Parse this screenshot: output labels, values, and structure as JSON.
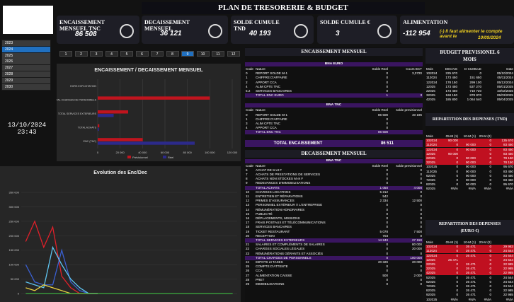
{
  "title": "PLAN DE TRESORERIE & BUDGET",
  "kpis": [
    {
      "label": "ENCAISSEMENT MENSUEL TNC",
      "value": "86 508"
    },
    {
      "label": "DECAISSEMENT MENSUEL",
      "value": "36 121"
    },
    {
      "label": "SOLDE CUMULE TND",
      "value": "40 193"
    },
    {
      "label": "SOLDE CUMULE €",
      "value": "3"
    },
    {
      "label": "ALIMENTATION",
      "value": "-112 954",
      "note": "(-) Il faut alimenter le compte avant le",
      "note_date": "10/09/2024"
    }
  ],
  "years": [
    "2023",
    "2024",
    "2025",
    "2026",
    "2027",
    "2028",
    "2029",
    "2030"
  ],
  "selected_year": "2024",
  "months": [
    "1",
    "2",
    "3",
    "4",
    "5",
    "6",
    "7",
    "8",
    "9",
    "10",
    "11",
    "12"
  ],
  "selected_month": "9",
  "date": "13/10/2024",
  "time": "23:43",
  "charts": [
    {
      "type": "hbar",
      "title": "ENCAISSEMENT / DECAISSEMENT MENSUEL",
      "categories": [
        "HORS EXPLOITATION",
        "TOTAL CHARGES DE PERSONNELS",
        "TOTAL SERVICES EXTERIEURS",
        "TOTAL ACHATS",
        "ENC (TNC)"
      ],
      "series": [
        {
          "name": "Prévisionnel",
          "color": "#c0141e",
          "values": [
            0,
            100000,
            27150,
            1450,
            40196
          ]
        },
        {
          "name": "Réel",
          "color": "#2c2a8a",
          "values": [
            0,
            0,
            14243,
            1050,
            86508
          ]
        }
      ],
      "xlim": [
        0,
        120000
      ],
      "xticks": [
        0,
        {
          "value": 20000,
          "label": "20 000"
        },
        {
          "value": 40000,
          "label": "40 000"
        },
        {
          "value": 60000,
          "label": "60 000"
        },
        {
          "value": 80000,
          "label": "80 000"
        },
        {
          "value": 100000,
          "label": "100 000"
        },
        {
          "value": 120000,
          "label": "120 000"
        }
      ]
    },
    {
      "type": "line",
      "title": "Evolution des Enc/Dec",
      "categories": [
        null,
        null,
        null,
        null,
        null,
        null,
        null,
        null,
        null,
        null,
        null,
        null,
        null,
        null,
        null,
        null,
        null,
        null,
        null,
        null,
        null,
        null,
        null,
        null
      ],
      "series": [
        {
          "color": "#e0202a",
          "values": [
            180000,
            250000,
            160000,
            230000,
            60000,
            20000,
            0,
            0,
            0,
            null,
            null,
            null,
            null,
            null,
            null,
            null,
            null,
            null,
            null,
            null,
            null,
            null,
            null,
            null
          ]
        },
        {
          "color": "#3a5fd0",
          "values": [
            100000,
            40000,
            30000,
            30000,
            150000,
            40000,
            10000,
            0,
            0,
            null,
            null,
            null,
            null,
            null,
            null,
            null,
            null,
            null,
            null,
            null,
            null,
            null,
            null,
            null
          ]
        },
        {
          "color": "#5fc4f0",
          "values": [
            40000,
            30000,
            20000,
            160000,
            100000,
            50000,
            20000,
            0,
            0,
            null,
            null,
            null,
            null,
            null,
            null,
            null,
            null,
            null,
            null,
            null,
            null,
            null,
            null,
            null
          ]
        },
        {
          "color": "#e8d040",
          "values": [
            20000,
            10000,
            30000,
            20000,
            10000,
            0,
            0,
            0,
            0,
            null,
            null,
            null,
            null,
            null,
            null,
            null,
            null,
            null,
            null,
            null,
            null,
            null,
            null,
            null
          ]
        },
        {
          "color": "#3cb040",
          "values": [
            0,
            0,
            0,
            0,
            0,
            0,
            0,
            0,
            0,
            0,
            0,
            0,
            0,
            0,
            0,
            0,
            0,
            0,
            0,
            0,
            0,
            0,
            0,
            0
          ]
        }
      ],
      "ylim": [
        0,
        350000
      ],
      "yticks": [
        0,
        {
          "value": 50000,
          "label": "50 000"
        },
        {
          "value": 100000,
          "label": "100 000"
        },
        {
          "value": 150000,
          "label": "150 000"
        },
        {
          "value": 200000,
          "label": "200 000"
        },
        {
          "value": 250000,
          "label": "250 000"
        },
        {
          "value": 300000,
          "label": "300 000"
        },
        {
          "value": 350000,
          "label": "350 000"
        }
      ]
    }
  ],
  "enc": {
    "title": "ENCAISSEMENT MENSUEL",
    "tables": [
      {
        "subtitle": "BNA EURO",
        "columns": [
          "Code",
          "Nature",
          "Solde Reel",
          "Cours BCT"
        ],
        "rows": [
          [
            "0",
            "REPORT SOLDE M-1",
            "0",
            "3,3720"
          ],
          [
            "1",
            "CHIFFRE D'AFFAIRE",
            "0",
            null
          ],
          [
            "2",
            "APPORT CCA",
            "0",
            null
          ],
          [
            "4",
            "ALIM CPTE TNC",
            "0",
            null
          ],
          [
            "5.2",
            "SERVICES BANCAIRES",
            "0",
            null
          ],
          [
            null,
            "TOTAL ENC EURO",
            "1",
            "3"
          ]
        ]
      },
      {
        "subtitle": "BNA TNC",
        "columns": [
          "Code",
          "Nature",
          "Solde Reel",
          "solde previsionnel"
        ],
        "rows": [
          [
            "0",
            "REPORT SOLDE M-1",
            "86 508",
            "40 196"
          ],
          [
            "1",
            "CHIFFRE D'AFFAIRE",
            "0",
            null
          ],
          [
            "3",
            "ALIM CPTE TNC",
            "0",
            null
          ],
          [
            "4",
            "APPORT CCA",
            "0",
            null
          ],
          [
            null,
            "TOTAL ENC TNC",
            "86 508",
            null
          ]
        ]
      }
    ],
    "total_label": "TOTAL ENCAISSEMENT",
    "total_value": "86 511"
  },
  "dec": {
    "title": "DECAISSEMENT MENSUEL",
    "tables": [
      {
        "subtitle": "BNA TNC",
        "columns": [
          "Code",
          "Nature",
          "Solde Reel",
          "solde previsionnel"
        ],
        "rows": [
          [
            "6",
            "ACHAT DE M et F",
            "0",
            "0"
          ],
          [
            "7",
            "ACHATS DE PRESTATIONS DE SERVICES",
            "0",
            "0"
          ],
          [
            "8",
            "ACHATS NON STOCKES M et F",
            "0",
            "0"
          ],
          [
            "9",
            "REDEVANCES D'IMMOBILISATIONS",
            "0",
            "0"
          ],
          [
            null,
            "TOTAL ACHATS",
            "1 050",
            "4 000"
          ],
          [
            "10",
            "CHARGES LOCATIVES",
            "5 212",
            "0"
          ],
          [
            "11",
            "ENTRETIEN ET RÉPARATIONS",
            "542",
            "0"
          ],
          [
            "12",
            "PRIMES D'ASSURANCES",
            "2 334",
            "12 500"
          ],
          [
            "13",
            "PERSONNEL EXTÉRIEUR À L'ENTREPRISE",
            "0",
            "0"
          ],
          [
            "14",
            "RÉMUNÉRATION HONORAIRES",
            "0",
            "0"
          ],
          [
            "15",
            "PUBLICITÉ",
            "0",
            "0"
          ],
          [
            "16",
            "DÉPLACEMENTS, MISSIONS",
            "0",
            "0"
          ],
          [
            "17",
            "FRAIS POSTAUX ET TÉLÉCOMMUNICATIONS",
            "0",
            "0"
          ],
          [
            "18",
            "SERVICES BANCAIRES",
            "0",
            "0"
          ],
          [
            "19",
            "TICKET RESTAURANT",
            "5 078",
            "7 500"
          ],
          [
            "20",
            "RECEPTION",
            "703",
            "0"
          ],
          [
            null,
            "TOTAL SERVICES EXTERIEURS",
            "14 243",
            "27 150"
          ],
          [
            "21",
            "SALAIRES ET COMPLÉMENTS DE SALAIRES",
            "0",
            "80 000"
          ],
          [
            "22",
            "CHARGES SOCIALES LÉGALES",
            "0",
            "20 000"
          ],
          [
            "23",
            "RÉMUNÉRATIONS GÉRANTS ET ASSOCIÉS",
            "0",
            "0"
          ],
          [
            null,
            "TOTAL CHARGES DE PERSONNELS",
            "0",
            "100 000"
          ],
          [
            "24",
            "IMPOTS et TAXES",
            "20 329",
            "20 000"
          ],
          [
            "25",
            "COMPTE D'ATTENTE",
            "0",
            "0"
          ],
          [
            "26",
            "CCA",
            "0",
            "0"
          ],
          [
            "27",
            "ALIMENTATION CAISSE",
            "500",
            "2 000"
          ],
          [
            "28",
            "PRET",
            "0",
            "0"
          ],
          [
            "29",
            "IMMOBILISATIONS",
            "0",
            "0"
          ]
        ]
      }
    ]
  },
  "budget": {
    "title": "BUDGET PREVISIONEL 6 MOIS",
    "columns": [
      "Mois",
      "DECAIS",
      "D CUMULE",
      "Date"
    ],
    "rows": [
      [
        "102024",
        "225 670",
        "0",
        "05/10/2024"
      ],
      [
        "112024",
        "173 450",
        "151 650",
        "05/11/2024"
      ],
      [
        "122024",
        "178 150",
        "299 100",
        "05/12/2024"
      ],
      [
        "12025",
        "173 450",
        "537 270",
        "05/01/2025"
      ],
      [
        "22025",
        "173 450",
        "710 720",
        "10/02/2025"
      ],
      [
        "32025",
        "168 150",
        "878 870",
        "05/03/2025"
      ],
      [
        "42025",
        "185 800",
        "1 064 540",
        "05/04/2025"
      ]
    ]
  },
  "rep_tnd": {
    "title": "REPARTITION DES DEPENSES  (TND)",
    "columns": [
      "Mois",
      "05-M (1)",
      "10-M (1)",
      "20-M (2)",
      null
    ],
    "highlighted_rows": 6,
    "rows": [
      [
        "102024",
        "90 000",
        null,
        "0",
        "135 670"
      ],
      [
        "112024",
        "0",
        "90 000",
        "0",
        "83 450"
      ],
      [
        "122024",
        "0",
        "90 000",
        "0",
        "83 450"
      ],
      [
        "12025",
        "90 000",
        null,
        "0",
        "83 450"
      ],
      [
        "22025",
        "0",
        "90 000",
        "0",
        "78 150"
      ],
      [
        "32025",
        "0",
        "90 000",
        "0",
        "78 150"
      ],
      [
        "102025",
        "0",
        "90 000",
        "0",
        "95 670"
      ],
      [
        "112025",
        "0",
        "90 000",
        "0",
        "83 450"
      ],
      [
        "62025",
        "0",
        "90 000",
        "0",
        "83 450"
      ],
      [
        "72025",
        "0",
        "90 000",
        "0",
        "83 450"
      ],
      [
        "82025",
        "0",
        "90 000",
        "0",
        "95 670"
      ],
      [
        "92025",
        "#N/A",
        "#N/A",
        "#N/A",
        "#N/A"
      ]
    ]
  },
  "rep_eur": {
    "title": "REPARTITION DES DEPENSES (EURO €)",
    "columns": [
      "Mois",
      "05-M (1)",
      "10-M (1)",
      "20-M (2)",
      null
    ],
    "highlighted_rows": 7,
    "rows": [
      [
        "102024",
        "0",
        "26 471",
        "0",
        "29 983"
      ],
      [
        "112024",
        "0",
        "26 471",
        "0",
        "24 544"
      ],
      [
        "122024",
        "0",
        "26 471",
        "0",
        "24 544"
      ],
      [
        "12025",
        "26 471",
        null,
        "0",
        "24 544"
      ],
      [
        "22025",
        "0",
        "26 471",
        "0",
        "22 985"
      ],
      [
        "32025",
        "0",
        "26 471",
        "0",
        "22 985"
      ],
      [
        "42025",
        "0",
        "26 471",
        "0",
        "22 985"
      ],
      [
        "52025",
        "0",
        "26 471",
        "0",
        "24 544"
      ],
      [
        "62025",
        "0",
        "26 471",
        "0",
        "24 544"
      ],
      [
        "72025",
        "0",
        "26 471",
        "0",
        "24 544"
      ],
      [
        "82025",
        "0",
        "26 471",
        "0",
        "22 985"
      ],
      [
        "92025",
        "0",
        "26 471",
        "0",
        "22 985"
      ],
      [
        "102025",
        "#N/A",
        "#N/A",
        "#N/A",
        "#N/A"
      ]
    ]
  }
}
